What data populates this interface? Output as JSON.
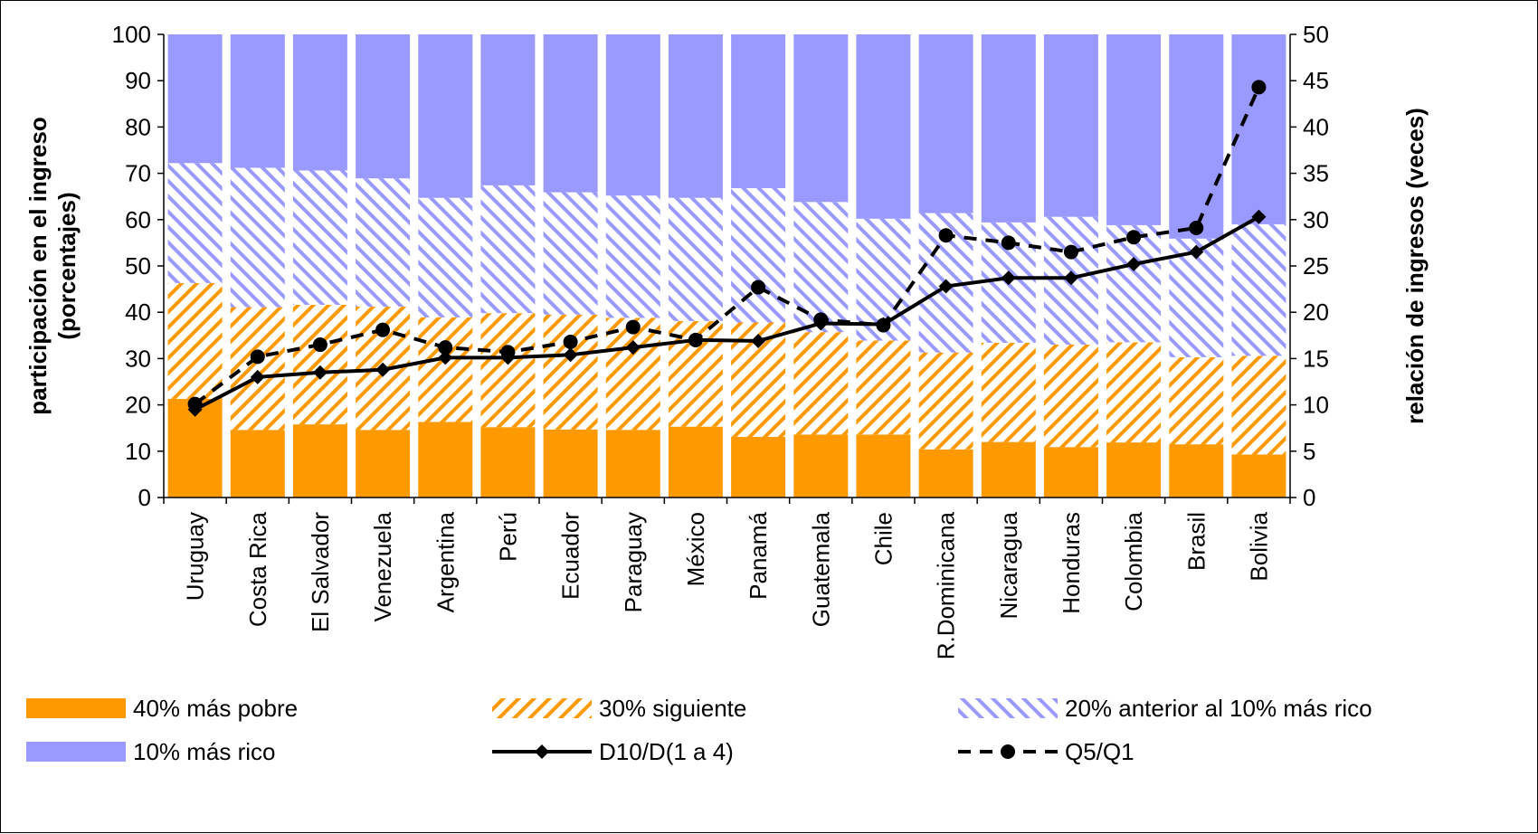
{
  "chart_data": {
    "type": "bar",
    "stacked": true,
    "categories": [
      "Uruguay",
      "Costa Rica",
      "El Salvador",
      "Venezuela",
      "Argentina",
      "Perú",
      "Ecuador",
      "Paraguay",
      "México",
      "Panamá",
      "Guatemala",
      "Chile",
      "R.Dominicana",
      "Nicaragua",
      "Honduras",
      "Colombia",
      "Brasil",
      "Bolivia"
    ],
    "stack_series": [
      {
        "name": "40% más pobre",
        "color": "#FF9900",
        "pattern": "solid",
        "values": [
          21.3,
          14.6,
          15.8,
          14.6,
          16.3,
          15.2,
          14.7,
          14.6,
          15.3,
          13.1,
          13.6,
          13.6,
          10.4,
          12.0,
          10.9,
          11.9,
          11.5,
          9.3
        ]
      },
      {
        "name": "30% siguiente",
        "color": "#FF9900",
        "pattern": "diagonal",
        "values": [
          25.0,
          26.5,
          25.8,
          26.6,
          22.6,
          24.6,
          24.8,
          24.2,
          22.8,
          24.7,
          22.1,
          20.3,
          20.9,
          21.4,
          22.1,
          21.6,
          18.8,
          21.3
        ]
      },
      {
        "name": "20% anterior al 10% más rico",
        "color": "#9999FF",
        "pattern": "diagonal",
        "values": [
          25.9,
          30.1,
          29.0,
          27.7,
          25.8,
          27.6,
          26.4,
          26.4,
          26.6,
          29.0,
          28.1,
          26.3,
          30.1,
          26.0,
          27.6,
          25.3,
          25.6,
          28.4
        ]
      },
      {
        "name": "10% más rico",
        "color": "#9999FF",
        "pattern": "solid",
        "values": [
          27.8,
          28.8,
          29.4,
          31.1,
          35.3,
          32.6,
          34.1,
          34.8,
          35.3,
          33.2,
          36.2,
          39.8,
          38.6,
          40.6,
          39.4,
          41.2,
          44.1,
          41.0
        ]
      }
    ],
    "line_series": [
      {
        "name": "D10/D(1 a 4)",
        "axis": "right",
        "style": "solid",
        "marker": "diamond",
        "values": [
          9.5,
          13.0,
          13.5,
          13.8,
          15.1,
          15.1,
          15.4,
          16.2,
          17.0,
          16.9,
          18.8,
          18.7,
          22.8,
          23.7,
          23.7,
          25.2,
          26.5,
          30.3
        ]
      },
      {
        "name": "Q5/Q1",
        "axis": "right",
        "style": "dashed",
        "marker": "circle",
        "values": [
          10.1,
          15.2,
          16.5,
          18.1,
          16.2,
          15.7,
          16.8,
          18.4,
          17.0,
          22.7,
          19.2,
          18.6,
          28.3,
          27.5,
          26.5,
          28.1,
          29.1,
          44.3
        ]
      }
    ],
    "ylabel": "participación en el ingreso (porcentajes)",
    "ylabel_lines": [
      "participación en el ingreso",
      "(porcentajes)"
    ],
    "y2label": "relación de ingresos (veces)",
    "ylim": [
      0,
      100
    ],
    "y2lim": [
      0,
      50
    ],
    "yticks": [
      "0",
      "10",
      "20",
      "30",
      "40",
      "50",
      "60",
      "70",
      "80",
      "90",
      "100"
    ],
    "y2ticks": [
      "0",
      "5",
      "10",
      "15",
      "20",
      "25",
      "30",
      "35",
      "40",
      "45",
      "50"
    ],
    "grid": false,
    "legend_position": "bottom"
  },
  "legend": [
    {
      "label": "40% más pobre",
      "kind": "bar-solid-orange"
    },
    {
      "label": "30% siguiente",
      "kind": "bar-hatch-orange"
    },
    {
      "label": "20% anterior al 10% más rico",
      "kind": "bar-hatch-blue"
    },
    {
      "label": "10% más rico",
      "kind": "bar-solid-blue"
    },
    {
      "label": "D10/D(1 a 4)",
      "kind": "line-diamond"
    },
    {
      "label": "Q5/Q1",
      "kind": "line-dashed-circle"
    }
  ]
}
